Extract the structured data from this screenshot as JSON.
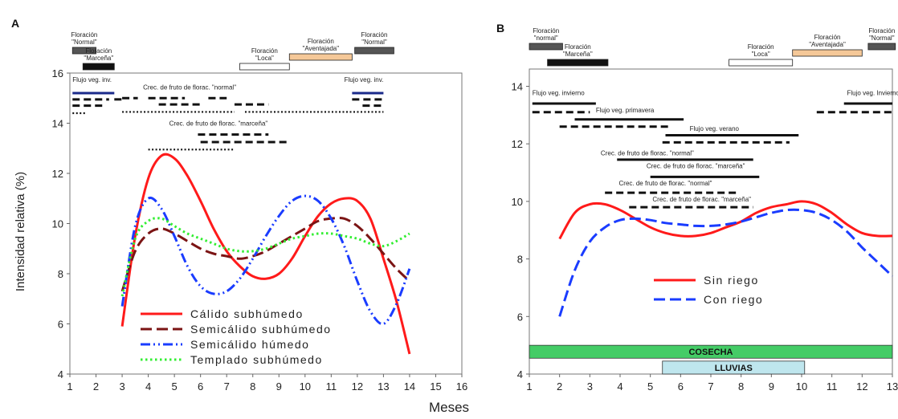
{
  "figure": {
    "shared_xlabel": "Meses"
  },
  "chart_data": [
    {
      "panel_letter": "A",
      "type": "line",
      "ylabel": "Intensidad relativa (%)",
      "xlim": [
        1,
        16
      ],
      "ylim": [
        4,
        16
      ],
      "x_ticks": [
        1,
        2,
        3,
        4,
        5,
        6,
        7,
        8,
        9,
        10,
        11,
        12,
        13,
        14,
        15,
        16
      ],
      "y_ticks": [
        4,
        6,
        8,
        10,
        12,
        14,
        16
      ],
      "legend_position": "bottom-center",
      "series": [
        {
          "name": "Cálido subhúmedo",
          "color": "#ff1a1a",
          "style": "solid",
          "x": [
            3,
            3.5,
            4,
            4.5,
            5,
            5.5,
            6,
            6.5,
            7,
            7.5,
            8,
            8.5,
            9,
            9.5,
            10,
            10.5,
            11,
            11.5,
            12,
            12.5,
            13,
            13.5,
            14
          ],
          "y": [
            5.9,
            9.5,
            11.8,
            12.7,
            12.6,
            11.9,
            10.9,
            9.8,
            8.9,
            8.3,
            7.9,
            7.8,
            8.0,
            8.6,
            9.5,
            10.3,
            10.8,
            11.0,
            10.9,
            10.2,
            8.6,
            6.9,
            4.8
          ]
        },
        {
          "name": "Semicálido subhúmedo",
          "color": "#7b1414",
          "style": "dash",
          "x": [
            3,
            3.5,
            4,
            4.5,
            5,
            5.5,
            6,
            6.5,
            7,
            7.5,
            8,
            8.5,
            9,
            9.5,
            10,
            10.5,
            11,
            11.5,
            12,
            12.5,
            13,
            13.5,
            14
          ],
          "y": [
            7.3,
            8.9,
            9.6,
            9.8,
            9.6,
            9.3,
            9.0,
            8.8,
            8.7,
            8.6,
            8.7,
            8.9,
            9.2,
            9.5,
            9.8,
            10.1,
            10.2,
            10.2,
            9.9,
            9.4,
            8.8,
            8.2,
            7.7
          ]
        },
        {
          "name": "Semicálido húmedo",
          "color": "#1a3cff",
          "style": "dashdotdot",
          "x": [
            3,
            3.5,
            4,
            4.5,
            5,
            5.5,
            6,
            6.5,
            7,
            7.5,
            8,
            8.5,
            9,
            9.5,
            10,
            10.5,
            11,
            11.5,
            12,
            12.5,
            13,
            13.5,
            14
          ],
          "y": [
            6.7,
            9.9,
            11.0,
            10.6,
            9.5,
            8.3,
            7.5,
            7.2,
            7.3,
            7.8,
            8.6,
            9.5,
            10.3,
            10.9,
            11.1,
            10.9,
            10.2,
            9.1,
            7.7,
            6.5,
            6.0,
            6.8,
            8.2
          ]
        },
        {
          "name": "Templado subhúmedo",
          "color": "#33ee33",
          "style": "dot",
          "x": [
            3,
            3.5,
            4,
            4.5,
            5,
            5.5,
            6,
            6.5,
            7,
            7.5,
            8,
            8.5,
            9,
            9.5,
            10,
            10.5,
            11,
            11.5,
            12,
            12.5,
            13,
            13.5,
            14
          ],
          "y": [
            7.1,
            9.4,
            10.1,
            10.2,
            9.9,
            9.6,
            9.4,
            9.2,
            9.0,
            8.9,
            8.9,
            9.0,
            9.2,
            9.4,
            9.5,
            9.6,
            9.6,
            9.5,
            9.4,
            9.2,
            9.1,
            9.3,
            9.6
          ]
        }
      ],
      "floraciones": [
        {
          "label": "Floración \"Normal\"",
          "fill": "#555555",
          "start": 1.1,
          "end": 2.0,
          "level": 2
        },
        {
          "label": "Floración \"Marceña\"",
          "fill": "#111111",
          "start": 1.5,
          "end": 2.7,
          "level": 1
        },
        {
          "label": "Floración \"Loca\"",
          "fill": "#ffffff",
          "start": 7.5,
          "end": 9.4,
          "level": 1
        },
        {
          "label": "Floración \"Aventajada\"",
          "fill": "#f5c898",
          "start": 9.4,
          "end": 11.8,
          "level": 1.6
        },
        {
          "label": "Floración \"Normal\"",
          "fill": "#555555",
          "start": 11.9,
          "end": 13.4,
          "level": 2
        }
      ],
      "annotations": [
        {
          "text": "Flujo veg. inv.",
          "x": 1.1,
          "y": 15.65,
          "anchor": "start"
        },
        {
          "text": "Crec. de fruto de florac. \"normal\"",
          "x": 3.8,
          "y": 15.35,
          "anchor": "start"
        },
        {
          "text": "Flujo veg. inv.",
          "x": 11.5,
          "y": 15.65,
          "anchor": "start"
        },
        {
          "text": "Crec. de fruto de florac. \"marceña\"",
          "x": 4.8,
          "y": 13.9,
          "anchor": "start"
        }
      ],
      "phenology_bars": [
        {
          "x1": 1.1,
          "x2": 2.7,
          "y": 15.2,
          "style": "solid",
          "color": "#1a2a8a"
        },
        {
          "x1": 1.1,
          "x2": 2.5,
          "y": 14.95,
          "style": "dash",
          "color": "#111"
        },
        {
          "x1": 2.7,
          "x2": 3.0,
          "y": 14.95,
          "style": "dash",
          "color": "#111"
        },
        {
          "x1": 1.1,
          "x2": 2.3,
          "y": 14.7,
          "style": "dash",
          "color": "#111"
        },
        {
          "x1": 1.1,
          "x2": 1.6,
          "y": 14.4,
          "style": "dot",
          "color": "#111"
        },
        {
          "x1": 3.0,
          "x2": 3.6,
          "y": 15.0,
          "style": "dash",
          "color": "#111"
        },
        {
          "x1": 4.0,
          "x2": 5.4,
          "y": 15.0,
          "style": "dash",
          "color": "#111"
        },
        {
          "x1": 4.4,
          "x2": 6.0,
          "y": 14.75,
          "style": "dash",
          "color": "#111"
        },
        {
          "x1": 6.3,
          "x2": 7.0,
          "y": 15.0,
          "style": "dash",
          "color": "#111"
        },
        {
          "x1": 7.3,
          "x2": 8.6,
          "y": 14.75,
          "style": "dash",
          "color": "#111"
        },
        {
          "x1": 3.0,
          "x2": 7.3,
          "y": 14.45,
          "style": "dot",
          "color": "#111"
        },
        {
          "x1": 5.9,
          "x2": 8.6,
          "y": 13.55,
          "style": "dash",
          "color": "#111"
        },
        {
          "x1": 6.0,
          "x2": 9.3,
          "y": 13.25,
          "style": "dash",
          "color": "#111"
        },
        {
          "x1": 4.0,
          "x2": 7.3,
          "y": 12.95,
          "style": "dot",
          "color": "#111"
        },
        {
          "x1": 11.8,
          "x2": 13.0,
          "y": 15.2,
          "style": "solid",
          "color": "#1a2a8a"
        },
        {
          "x1": 11.8,
          "x2": 13.0,
          "y": 14.95,
          "style": "dash",
          "color": "#111"
        },
        {
          "x1": 12.2,
          "x2": 13.0,
          "y": 14.7,
          "style": "dash",
          "color": "#111"
        },
        {
          "x1": 7.7,
          "x2": 13.0,
          "y": 14.45,
          "style": "dot",
          "color": "#111"
        }
      ]
    },
    {
      "panel_letter": "B",
      "type": "line",
      "ylabel": "",
      "xlim": [
        1,
        13
      ],
      "ylim": [
        4,
        14.6
      ],
      "x_ticks": [
        1,
        2,
        3,
        4,
        5,
        6,
        7,
        8,
        9,
        10,
        11,
        12,
        13
      ],
      "y_ticks": [
        4,
        6,
        8,
        10,
        12,
        14
      ],
      "legend_position": "right-middle",
      "series": [
        {
          "name": "Sin riego",
          "color": "#ff1a1a",
          "style": "solid",
          "x": [
            2,
            2.5,
            3,
            3.5,
            4,
            4.5,
            5,
            5.5,
            6,
            6.5,
            7,
            7.5,
            8,
            8.5,
            9,
            9.5,
            10,
            10.5,
            11,
            11.5,
            12,
            12.5,
            13
          ],
          "y": [
            8.7,
            9.6,
            9.9,
            9.9,
            9.7,
            9.4,
            9.1,
            8.9,
            8.8,
            8.8,
            8.9,
            9.1,
            9.3,
            9.6,
            9.8,
            9.9,
            10.0,
            9.9,
            9.6,
            9.2,
            8.9,
            8.8,
            8.8
          ]
        },
        {
          "name": "Con riego",
          "color": "#1a3cff",
          "style": "dash",
          "x": [
            2,
            2.5,
            3,
            3.5,
            4,
            4.5,
            5,
            5.5,
            6,
            6.5,
            7,
            7.5,
            8,
            8.5,
            9,
            9.5,
            10,
            10.5,
            11,
            11.5,
            12,
            12.5,
            13
          ],
          "y": [
            6.0,
            7.6,
            8.6,
            9.1,
            9.35,
            9.4,
            9.35,
            9.25,
            9.2,
            9.15,
            9.15,
            9.2,
            9.3,
            9.45,
            9.6,
            9.7,
            9.7,
            9.6,
            9.35,
            8.95,
            8.4,
            7.9,
            7.4
          ]
        }
      ],
      "floraciones": [
        {
          "label": "Floración \"normal\"",
          "fill": "#555555",
          "start": 1.0,
          "end": 2.1,
          "level": 2
        },
        {
          "label": "Floración \"Marceña\"",
          "fill": "#111111",
          "start": 1.6,
          "end": 3.6,
          "level": 1
        },
        {
          "label": "Floración \"Loca\"",
          "fill": "#ffffff",
          "start": 7.6,
          "end": 9.7,
          "level": 1
        },
        {
          "label": "Floración \"Aventajada\"",
          "fill": "#f5c898",
          "start": 9.7,
          "end": 12.0,
          "level": 1.6
        },
        {
          "label": "Floración \"Normal\"",
          "fill": "#555555",
          "start": 12.2,
          "end": 13.1,
          "level": 2
        }
      ],
      "annotations": [
        {
          "text": "Flujo veg. invierno",
          "x": 1.1,
          "y": 13.7,
          "anchor": "start"
        },
        {
          "text": "Flujo veg. primavera",
          "x": 3.2,
          "y": 13.1,
          "anchor": "start"
        },
        {
          "text": "Flujo veg. verano",
          "x": 6.3,
          "y": 12.45,
          "anchor": "start"
        },
        {
          "text": "Flujo veg. Invierno",
          "x": 11.5,
          "y": 13.7,
          "anchor": "start"
        },
        {
          "text": "Crec. de fruto de florac. \"normal\"",
          "x": 4.9,
          "y": 11.6,
          "anchor": "middle"
        },
        {
          "text": "Crec. de fruto de florac. \"marceña\"",
          "x": 6.5,
          "y": 11.15,
          "anchor": "middle"
        },
        {
          "text": "Crec. de fruto de florac. \"normal\"",
          "x": 5.5,
          "y": 10.55,
          "anchor": "middle"
        },
        {
          "text": "Crec. de fruto de florac. \"marceña\"",
          "x": 6.7,
          "y": 10.0,
          "anchor": "middle"
        }
      ],
      "phenology_bars": [
        {
          "x1": 1.1,
          "x2": 3.2,
          "y": 13.4,
          "style": "solid",
          "color": "#111"
        },
        {
          "x1": 1.1,
          "x2": 3.0,
          "y": 13.1,
          "style": "dash",
          "color": "#111"
        },
        {
          "x1": 2.5,
          "x2": 6.1,
          "y": 12.85,
          "style": "solid",
          "color": "#111"
        },
        {
          "x1": 2.0,
          "x2": 5.6,
          "y": 12.6,
          "style": "dash",
          "color": "#111"
        },
        {
          "x1": 5.5,
          "x2": 9.9,
          "y": 12.3,
          "style": "solid",
          "color": "#111"
        },
        {
          "x1": 5.4,
          "x2": 9.6,
          "y": 12.05,
          "style": "dash",
          "color": "#111"
        },
        {
          "x1": 11.4,
          "x2": 13.0,
          "y": 13.4,
          "style": "solid",
          "color": "#111"
        },
        {
          "x1": 10.5,
          "x2": 13.0,
          "y": 13.1,
          "style": "dash",
          "color": "#111"
        },
        {
          "x1": 3.9,
          "x2": 8.4,
          "y": 11.45,
          "style": "solid",
          "color": "#111"
        },
        {
          "x1": 5.0,
          "x2": 8.6,
          "y": 10.85,
          "style": "solid",
          "color": "#111"
        },
        {
          "x1": 3.5,
          "x2": 7.9,
          "y": 10.3,
          "style": "dash",
          "color": "#111"
        },
        {
          "x1": 4.3,
          "x2": 8.4,
          "y": 9.8,
          "style": "dash",
          "color": "#111"
        }
      ],
      "bands": [
        {
          "label": "COSECHA",
          "fill": "#44cc66",
          "x1": 1.0,
          "x2": 13.0,
          "y_top": 5.0,
          "y_bottom": 4.55
        },
        {
          "label": "LLUVIAS",
          "fill": "#bfe6ee",
          "x1": 5.4,
          "x2": 10.1,
          "y_top": 4.45,
          "y_bottom": 4.0
        }
      ]
    }
  ]
}
